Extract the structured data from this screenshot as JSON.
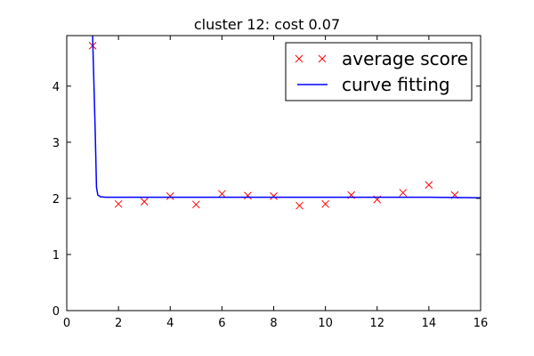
{
  "chart_data": {
    "type": "scatter",
    "title": "cluster 12: cost 0.07",
    "xlabel": "",
    "ylabel": "",
    "xlim": [
      0,
      16
    ],
    "ylim": [
      0,
      4.9
    ],
    "x_ticks": [
      0,
      2,
      4,
      6,
      8,
      10,
      12,
      14,
      16
    ],
    "y_ticks": [
      0,
      1,
      2,
      3,
      4
    ],
    "grid": false,
    "legend_position": "top-right",
    "series": [
      {
        "name": "average score",
        "kind": "scatter",
        "marker": "x",
        "color": "#ff0000",
        "x": [
          1,
          2,
          3,
          4,
          5,
          6,
          7,
          8,
          9,
          10,
          11,
          12,
          13,
          14,
          15
        ],
        "y": [
          4.72,
          1.9,
          1.94,
          2.04,
          1.89,
          2.08,
          2.05,
          2.04,
          1.87,
          1.9,
          2.06,
          1.98,
          2.1,
          2.24,
          2.06
        ]
      },
      {
        "name": "curve fitting",
        "kind": "line",
        "color": "#0000ff",
        "x": [
          1.0,
          1.1,
          1.15,
          1.2,
          1.3,
          1.5,
          2,
          3,
          4,
          6,
          8,
          10,
          12,
          14,
          16
        ],
        "y": [
          4.9,
          3.2,
          2.2,
          2.06,
          2.03,
          2.02,
          2.02,
          2.02,
          2.02,
          2.02,
          2.02,
          2.02,
          2.02,
          2.02,
          2.01
        ]
      }
    ]
  }
}
